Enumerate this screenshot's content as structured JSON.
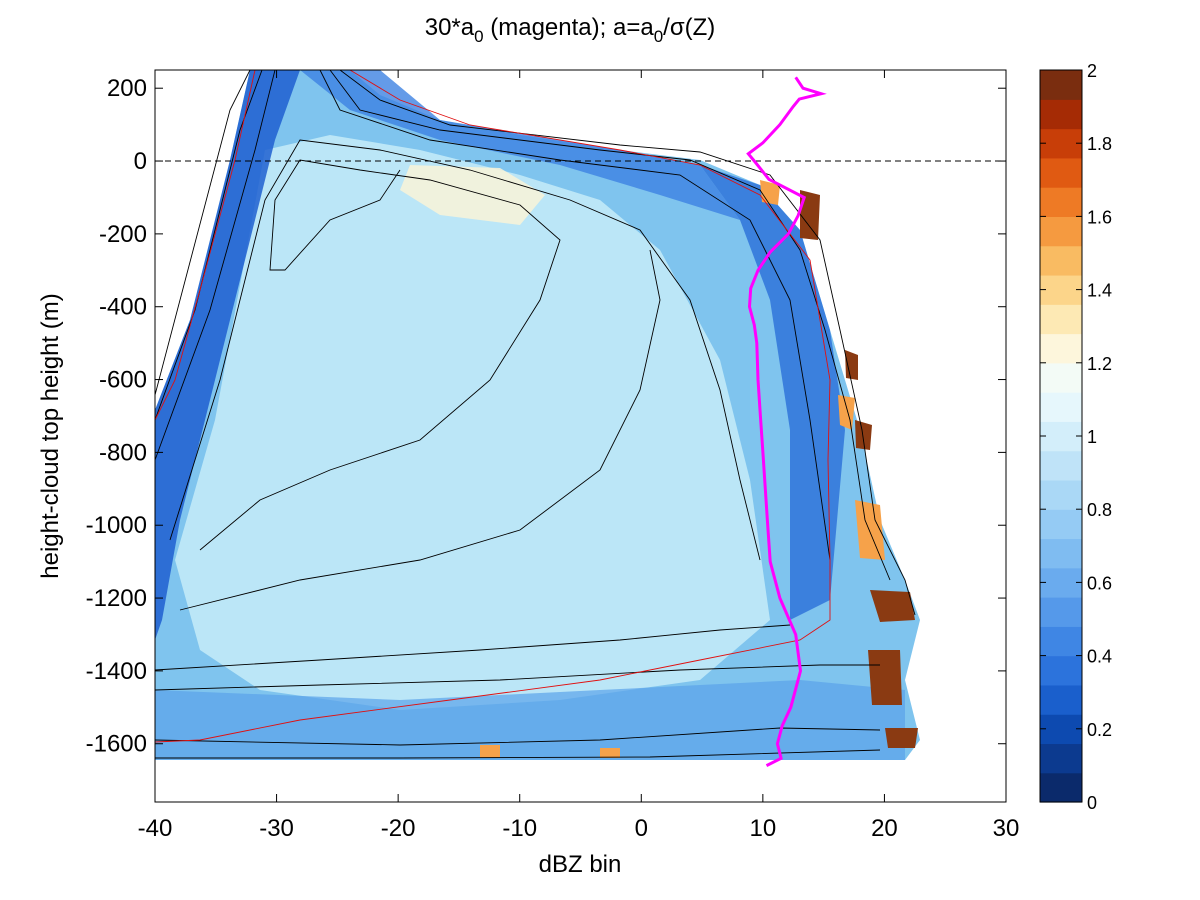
{
  "chart_data": {
    "type": "heatmap",
    "title": "30*a0 (magenta); a=a0/σ(Z)",
    "title_parts": {
      "prefix": "30*a",
      "sub1": "0",
      "mid": " (magenta); a=a",
      "sub2": "0",
      "suffix": "/σ(Z)"
    },
    "xlabel": "dBZ bin",
    "ylabel": "height-cloud top height (m)",
    "xlim": [
      -40,
      30
    ],
    "ylim": [
      -1760,
      250
    ],
    "x_ticks": [
      -40,
      -30,
      -20,
      -10,
      0,
      10,
      20,
      30
    ],
    "y_ticks": [
      -1600,
      -1400,
      -1200,
      -1000,
      -800,
      -600,
      -400,
      -200,
      0,
      200
    ],
    "colorbar": {
      "range": [
        0,
        2
      ],
      "ticks": [
        "0",
        "0.2",
        "0.4",
        "0.6",
        "0.8",
        "1",
        "1.2",
        "1.4",
        "1.6",
        "1.8",
        "2"
      ],
      "colors": [
        "#0b2a6b",
        "#0c3a8f",
        "#0d4ab0",
        "#1a5fcc",
        "#2c73dc",
        "#3f86e4",
        "#5599ea",
        "#6aabee",
        "#7fbcf1",
        "#95cbf4",
        "#aad8f6",
        "#bfe3f8",
        "#d3eefa",
        "#e6f7fc",
        "#f3fbf6",
        "#fdf6dc",
        "#fde9b4",
        "#fcd58a",
        "#f9bb62",
        "#f59a40",
        "#ee7a25",
        "#e05a12",
        "#c83e08",
        "#a52b05",
        "#7a2d0f"
      ]
    },
    "reference_line": {
      "y": 0,
      "style": "dashed"
    },
    "magenta_series": {
      "name": "30*a0",
      "color": "#ff00ff",
      "y": [
        230,
        200,
        185,
        170,
        150,
        100,
        50,
        20,
        0,
        -50,
        -100,
        -150,
        -200,
        -250,
        -300,
        -350,
        -400,
        -450,
        -500,
        -600,
        -700,
        -800,
        -900,
        -1000,
        -1100,
        -1200,
        -1300,
        -1400,
        -1500,
        -1550,
        -1600,
        -1640,
        -1660
      ],
      "x": [
        12.7,
        13.3,
        14.8,
        13.0,
        12.5,
        11.4,
        10.0,
        8.8,
        9.3,
        10.5,
        13.4,
        12.9,
        12.1,
        10.6,
        9.6,
        9.0,
        8.9,
        9.3,
        9.5,
        9.6,
        9.8,
        10.0,
        10.2,
        10.4,
        10.6,
        11.4,
        12.7,
        13.1,
        12.3,
        11.6,
        11.2,
        11.5,
        10.3
      ]
    }
  }
}
